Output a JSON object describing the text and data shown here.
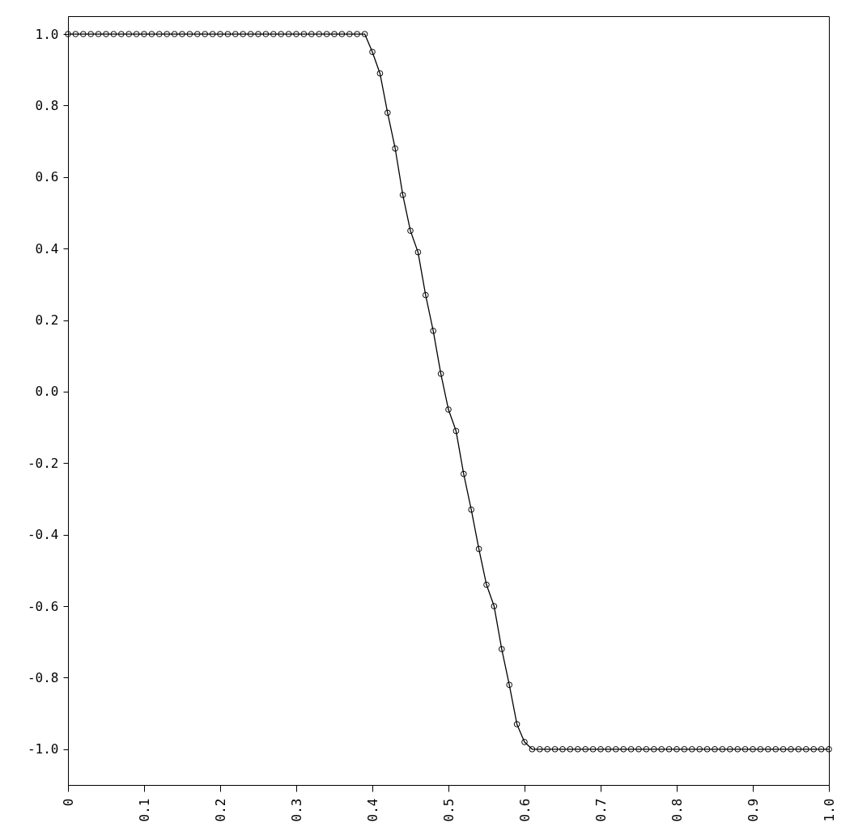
{
  "chart_data": {
    "type": "line",
    "marker": "circle",
    "line_style": "solid",
    "grid": false,
    "x": [
      0,
      0.01,
      0.02,
      0.03,
      0.04,
      0.05,
      0.06,
      0.07,
      0.08,
      0.09,
      0.1,
      0.11,
      0.12,
      0.13,
      0.14,
      0.15,
      0.16,
      0.17,
      0.18,
      0.19,
      0.2,
      0.21,
      0.22,
      0.23,
      0.24,
      0.25,
      0.26,
      0.27,
      0.28,
      0.29,
      0.3,
      0.31,
      0.32,
      0.33,
      0.34,
      0.35,
      0.36,
      0.37,
      0.38,
      0.39,
      0.4,
      0.41,
      0.42,
      0.43,
      0.44,
      0.45,
      0.46,
      0.47,
      0.48,
      0.49,
      0.5,
      0.51,
      0.52,
      0.53,
      0.54,
      0.55,
      0.56,
      0.57,
      0.58,
      0.59,
      0.6,
      0.61,
      0.62,
      0.63,
      0.64,
      0.65,
      0.66,
      0.67,
      0.68,
      0.69,
      0.7,
      0.71,
      0.72,
      0.73,
      0.74,
      0.75,
      0.76,
      0.77,
      0.78,
      0.79,
      0.8,
      0.81,
      0.82,
      0.83,
      0.84,
      0.85,
      0.86,
      0.87,
      0.88,
      0.89,
      0.9,
      0.91,
      0.92,
      0.93,
      0.94,
      0.95,
      0.96,
      0.97,
      0.98,
      0.99,
      1.0
    ],
    "series": [
      {
        "color": "#000000",
        "values": [
          1,
          1,
          1,
          1,
          1,
          1,
          1,
          1,
          1,
          1,
          1,
          1,
          1,
          1,
          1,
          1,
          1,
          1,
          1,
          1,
          1,
          1,
          1,
          1,
          1,
          1,
          1,
          1,
          1,
          1,
          1,
          1,
          1,
          1,
          1,
          1,
          1,
          1,
          1,
          1,
          0.95,
          0.89,
          0.78,
          0.68,
          0.55,
          0.45,
          0.39,
          0.27,
          0.17,
          0.05,
          -0.05,
          -0.11,
          -0.23,
          -0.33,
          -0.44,
          -0.54,
          -0.6,
          -0.72,
          -0.82,
          -0.93,
          -0.98,
          -1,
          -1,
          -1,
          -1,
          -1,
          -1,
          -1,
          -1,
          -1,
          -1,
          -1,
          -1,
          -1,
          -1,
          -1,
          -1,
          -1,
          -1,
          -1,
          -1,
          -1,
          -1,
          -1,
          -1,
          -1,
          -1,
          -1,
          -1,
          -1,
          -1,
          -1,
          -1,
          -1,
          -1,
          -1,
          -1,
          -1,
          -1,
          -1,
          -1
        ]
      }
    ],
    "xlim": [
      0,
      1
    ],
    "xticks": [
      0,
      {
        "value": 0.1,
        "label": "0.1"
      },
      {
        "value": 0.2,
        "label": "0.2"
      },
      {
        "value": 0.3,
        "label": "0.3"
      },
      {
        "value": 0.4,
        "label": "0.4"
      },
      {
        "value": 0.5,
        "label": "0.5"
      },
      {
        "value": 0.6,
        "label": "0.6"
      },
      {
        "value": 0.7,
        "label": "0.7"
      },
      {
        "value": 0.8,
        "label": "0.8"
      },
      {
        "value": 0.9,
        "label": "0.9"
      },
      {
        "value": 1,
        "label": "1.0"
      }
    ],
    "ylim": [
      -1.1,
      1.05
    ],
    "yticks": [
      {
        "value": -1,
        "label": "-1.0"
      },
      {
        "value": -0.8,
        "label": "-0.8"
      },
      {
        "value": -0.6,
        "label": "-0.6"
      },
      {
        "value": -0.4,
        "label": "-0.4"
      },
      {
        "value": -0.2,
        "label": "-0.2"
      },
      {
        "value": 0,
        "label": "0.0"
      },
      {
        "value": 0.2,
        "label": "0.2"
      },
      {
        "value": 0.4,
        "label": "0.4"
      },
      {
        "value": 0.6,
        "label": "0.6"
      },
      {
        "value": 0.8,
        "label": "0.8"
      },
      {
        "value": 1,
        "label": "1.0"
      }
    ]
  }
}
